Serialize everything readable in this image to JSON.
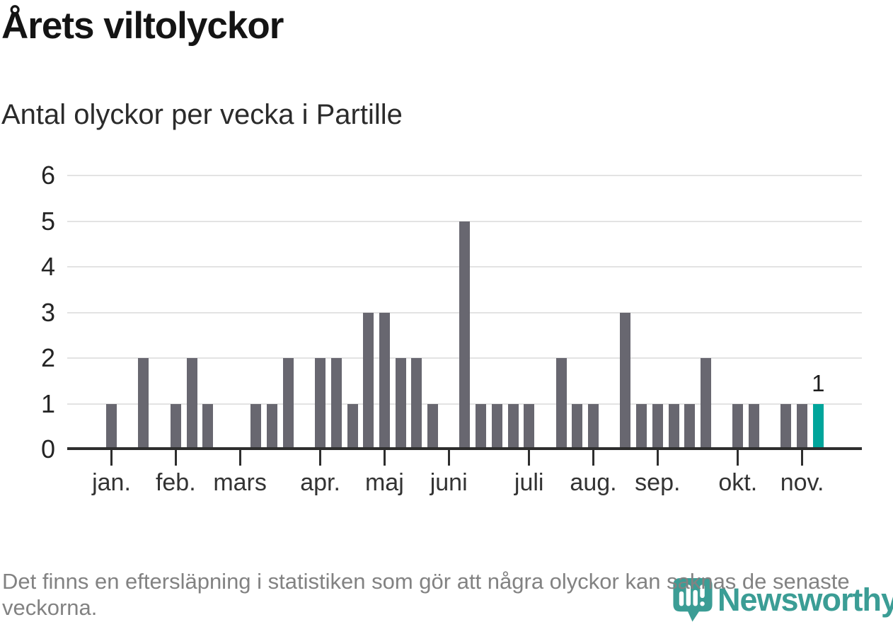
{
  "header": {
    "title": "Årets viltolyckor",
    "subtitle": "Antal olyckor per vecka i Partille"
  },
  "chart_data": {
    "type": "bar",
    "title": "Årets viltolyckor",
    "subtitle": "Antal olyckor per vecka i Partille",
    "x_unit": "week-of-year",
    "x_domain": [
      1,
      49
    ],
    "ylim": [
      0,
      6
    ],
    "yticks": [
      0,
      1,
      2,
      3,
      4,
      5,
      6
    ],
    "grid": "horizontal",
    "legend": "none",
    "bar_color": "#686770",
    "highlight_color": "#00A59B",
    "points": [
      {
        "week": 3,
        "value": 1
      },
      {
        "week": 5,
        "value": 2
      },
      {
        "week": 7,
        "value": 1
      },
      {
        "week": 8,
        "value": 2
      },
      {
        "week": 9,
        "value": 1
      },
      {
        "week": 12,
        "value": 1
      },
      {
        "week": 13,
        "value": 1
      },
      {
        "week": 14,
        "value": 2
      },
      {
        "week": 16,
        "value": 2
      },
      {
        "week": 17,
        "value": 2
      },
      {
        "week": 18,
        "value": 1
      },
      {
        "week": 19,
        "value": 3
      },
      {
        "week": 20,
        "value": 3
      },
      {
        "week": 21,
        "value": 2
      },
      {
        "week": 22,
        "value": 2
      },
      {
        "week": 23,
        "value": 1
      },
      {
        "week": 25,
        "value": 5
      },
      {
        "week": 26,
        "value": 1
      },
      {
        "week": 27,
        "value": 1
      },
      {
        "week": 28,
        "value": 1
      },
      {
        "week": 29,
        "value": 1
      },
      {
        "week": 31,
        "value": 2
      },
      {
        "week": 32,
        "value": 1
      },
      {
        "week": 33,
        "value": 1
      },
      {
        "week": 35,
        "value": 3
      },
      {
        "week": 36,
        "value": 1
      },
      {
        "week": 37,
        "value": 1
      },
      {
        "week": 38,
        "value": 1
      },
      {
        "week": 39,
        "value": 1
      },
      {
        "week": 40,
        "value": 2
      },
      {
        "week": 42,
        "value": 1
      },
      {
        "week": 43,
        "value": 1
      },
      {
        "week": 45,
        "value": 1
      },
      {
        "week": 46,
        "value": 1
      },
      {
        "week": 47,
        "value": 1,
        "highlight": true
      }
    ],
    "month_ticks": [
      {
        "label": "jan.",
        "week": 3
      },
      {
        "label": "feb.",
        "week": 7
      },
      {
        "label": "mars",
        "week": 11
      },
      {
        "label": "apr.",
        "week": 16
      },
      {
        "label": "maj",
        "week": 20
      },
      {
        "label": "juni",
        "week": 24
      },
      {
        "label": "juli",
        "week": 29
      },
      {
        "label": "aug.",
        "week": 33
      },
      {
        "label": "sep.",
        "week": 37
      },
      {
        "label": "okt.",
        "week": 42
      },
      {
        "label": "nov.",
        "week": 46
      }
    ],
    "annotation": {
      "text": "1",
      "week": 47,
      "value": 1
    }
  },
  "footer": {
    "note": "Det finns en eftersläpning i statistiken som gör att några olyckor kan saknas de senaste veckorna.",
    "brand": {
      "name": "Newsworthy",
      "color": "#3B9D95"
    }
  }
}
